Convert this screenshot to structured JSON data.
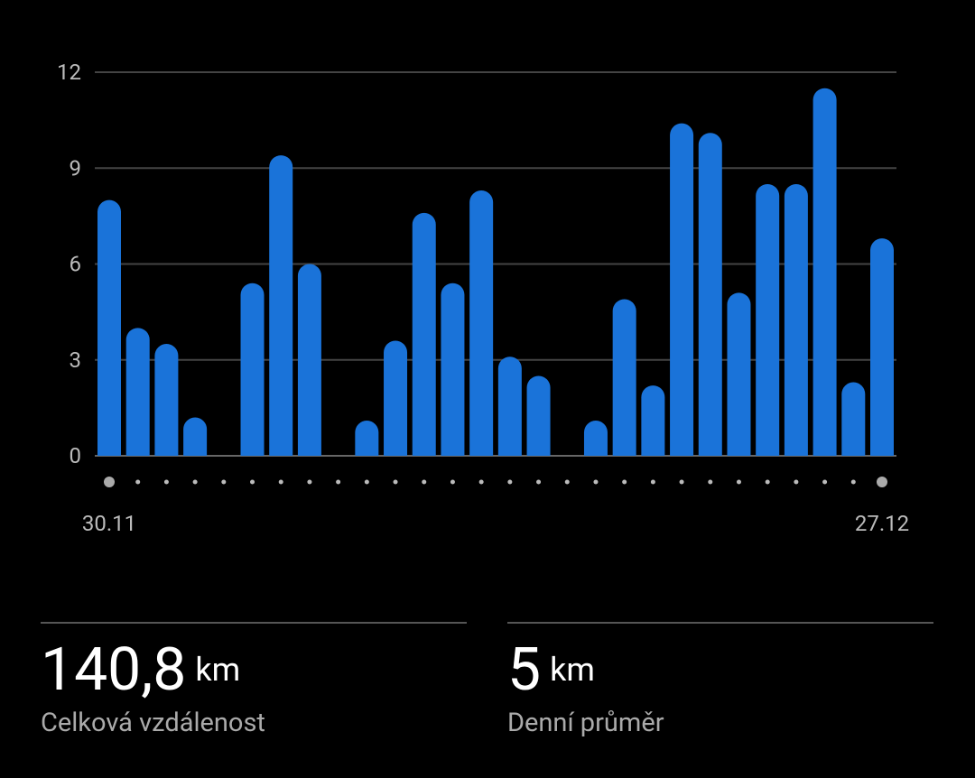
{
  "chart_data": {
    "type": "bar",
    "categories": [
      "30.11",
      null,
      null,
      null,
      null,
      null,
      null,
      null,
      null,
      null,
      null,
      null,
      null,
      null,
      null,
      null,
      null,
      null,
      null,
      null,
      null,
      null,
      null,
      null,
      null,
      null,
      null,
      "27.12"
    ],
    "values": [
      8.0,
      4.0,
      3.5,
      1.2,
      0,
      5.4,
      9.4,
      6.0,
      0,
      1.1,
      3.6,
      7.6,
      5.4,
      8.3,
      3.1,
      2.5,
      0,
      1.1,
      4.9,
      2.2,
      10.4,
      10.1,
      5.1,
      8.5,
      8.5,
      11.5,
      2.3,
      6.8
    ],
    "color": "#1a73d9",
    "ylim": [
      0,
      12
    ],
    "yticks": [
      0,
      3,
      6,
      9,
      12
    ],
    "grid": true
  },
  "stats": [
    {
      "value": "140,8",
      "unit": "km",
      "label": "Celková vzdálenost"
    },
    {
      "value": "5",
      "unit": "km",
      "label": "Denní průměr"
    }
  ]
}
